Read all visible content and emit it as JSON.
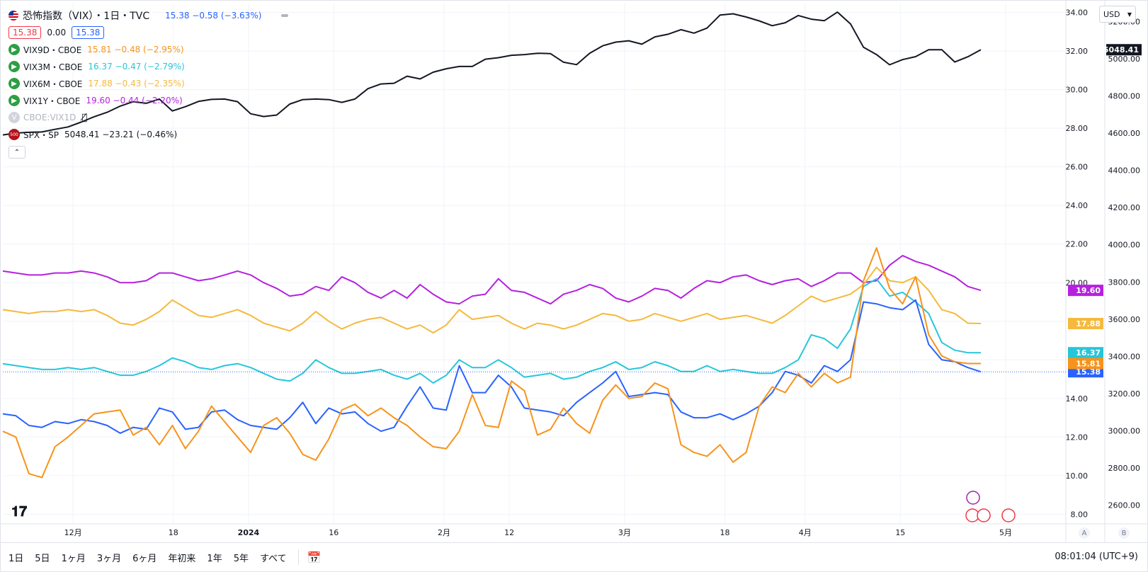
{
  "header": {
    "title": "恐怖指数（VIX）・1日・TVC",
    "main_values": "15.38 −0.58 (−3.63%)",
    "box_red": "15.38",
    "zero": "0.00",
    "box_blue": "15.38"
  },
  "series_legend": [
    {
      "name": "VIX9D・CBOE",
      "values": "15.81 −0.48 (−2.95%)",
      "color": "#f7931a"
    },
    {
      "name": "VIX3M・CBOE",
      "values": "16.37 −0.47 (−2.79%)",
      "color": "#26c6da"
    },
    {
      "name": "VIX6M・CBOE",
      "values": "17.88 −0.43 (−2.35%)",
      "color": "#f5b93d"
    },
    {
      "name": "VIX1Y・CBOE",
      "values": "19.60 −0.44 (−2.20%)",
      "color": "#b620e0"
    },
    {
      "name": "CBOE:VIX1D",
      "values": "",
      "color": "#b2b5be"
    },
    {
      "name": "SPX・SP",
      "values": "5048.41 −23.21 (−0.46%)",
      "color": "#131722"
    }
  ],
  "currency": "USD",
  "toolbar": {
    "ranges": [
      "1日",
      "5日",
      "1ヶ月",
      "3ヶ月",
      "6ヶ月",
      "年初来",
      "1年",
      "5年",
      "すべて"
    ],
    "clock": "08:01:04 (UTC+9)"
  },
  "scale_buttons": [
    "A",
    "B"
  ],
  "chart_data": {
    "type": "line",
    "x_labels": [
      "12月",
      "18",
      "2024",
      "16",
      "2月",
      "12",
      "3月",
      "18",
      "4月",
      "15",
      "5月"
    ],
    "left_axis": {
      "ticks": [
        8,
        10,
        12,
        14,
        16,
        18,
        20,
        22,
        24,
        26,
        28,
        30,
        32,
        34
      ],
      "labels": [
        "8.00",
        "10.00",
        "12.00",
        "14.00",
        "",
        "",
        "20.00",
        "22.00",
        "24.00",
        "26.00",
        "28.00",
        "30.00",
        "32.00",
        "34.00"
      ],
      "range": [
        7.5,
        34.5
      ]
    },
    "right_axis": {
      "ticks": [
        2600,
        2800,
        3000,
        3200,
        3400,
        3600,
        3800,
        4000,
        4200,
        4400,
        4600,
        4800,
        5000,
        5200
      ],
      "labels": [
        "2600.00",
        "2800.00",
        "3000.00",
        "3200.00",
        "3400.00",
        "3600.00",
        "3800.00",
        "4000.00",
        "4200.00",
        "4400.00",
        "4600.00",
        "4800.00",
        "5000.00",
        "5200.00"
      ],
      "range": [
        2500,
        5300
      ]
    },
    "series": [
      {
        "name": "VIX1Y・CBOE",
        "color": "#b620e0",
        "axis": "left",
        "last_label": "19.60",
        "values": [
          20.6,
          20.5,
          20.4,
          20.4,
          20.5,
          20.5,
          20.6,
          20.5,
          20.3,
          20.0,
          20.0,
          20.1,
          20.5,
          20.5,
          20.3,
          20.1,
          20.2,
          20.4,
          20.6,
          20.4,
          20.0,
          19.7,
          19.3,
          19.4,
          19.8,
          19.6,
          20.3,
          20.0,
          19.5,
          19.2,
          19.6,
          19.2,
          19.9,
          19.4,
          19.0,
          18.9,
          19.3,
          19.4,
          20.2,
          19.6,
          19.5,
          19.2,
          18.9,
          19.4,
          19.6,
          19.9,
          19.7,
          19.2,
          19.0,
          19.3,
          19.7,
          19.6,
          19.2,
          19.7,
          20.1,
          20.0,
          20.3,
          20.4,
          20.1,
          19.9,
          20.1,
          20.2,
          19.8,
          20.1,
          20.5,
          20.5,
          20.0,
          20.1,
          20.9,
          21.4,
          21.1,
          20.9,
          20.6,
          20.3,
          19.8,
          19.6
        ],
        "desc": "VIX1Y"
      },
      {
        "name": "VIX6M・CBOE",
        "color": "#f5b93d",
        "axis": "left",
        "last_label": "17.88",
        "values": [
          18.6,
          18.5,
          18.4,
          18.5,
          18.5,
          18.6,
          18.5,
          18.6,
          18.3,
          17.9,
          17.8,
          18.1,
          18.5,
          19.1,
          18.7,
          18.3,
          18.2,
          18.4,
          18.6,
          18.3,
          17.9,
          17.7,
          17.5,
          17.9,
          18.5,
          18.0,
          17.6,
          17.9,
          18.1,
          18.2,
          17.9,
          17.6,
          17.8,
          17.4,
          17.8,
          18.6,
          18.1,
          18.2,
          18.3,
          17.9,
          17.6,
          17.9,
          17.8,
          17.6,
          17.8,
          18.1,
          18.4,
          18.3,
          18.0,
          18.1,
          18.4,
          18.2,
          18.0,
          18.2,
          18.4,
          18.1,
          18.2,
          18.3,
          18.1,
          17.9,
          18.3,
          18.8,
          19.3,
          19.0,
          19.2,
          19.4,
          19.9,
          20.8,
          20.1,
          20.0,
          20.3,
          19.6,
          18.6,
          18.4,
          17.9,
          17.88
        ],
        "desc": "VIX6M"
      },
      {
        "name": "VIX3M・CBOE",
        "color": "#26c6da",
        "axis": "left",
        "last_label": "16.37",
        "values": [
          15.8,
          15.7,
          15.6,
          15.5,
          15.5,
          15.6,
          15.5,
          15.6,
          15.4,
          15.2,
          15.2,
          15.4,
          15.7,
          16.1,
          15.9,
          15.6,
          15.5,
          15.7,
          15.8,
          15.6,
          15.3,
          15.0,
          14.9,
          15.3,
          16.0,
          15.6,
          15.3,
          15.3,
          15.4,
          15.5,
          15.2,
          15.0,
          15.3,
          14.8,
          15.2,
          16.0,
          15.6,
          15.6,
          16.0,
          15.6,
          15.1,
          15.2,
          15.3,
          15.0,
          15.1,
          15.4,
          15.6,
          15.9,
          15.5,
          15.6,
          15.9,
          15.7,
          15.4,
          15.4,
          15.7,
          15.4,
          15.5,
          15.4,
          15.3,
          15.3,
          15.6,
          16.0,
          17.3,
          17.1,
          16.6,
          17.6,
          19.8,
          20.2,
          19.3,
          19.5,
          19.0,
          18.4,
          16.9,
          16.5,
          16.37,
          16.37
        ],
        "desc": "VIX3M"
      },
      {
        "name": "VIX・TVC",
        "color": "#2962ff",
        "axis": "left",
        "last_label": "15.38",
        "values": [
          13.2,
          13.1,
          12.6,
          12.5,
          12.8,
          12.7,
          12.9,
          12.8,
          12.6,
          12.2,
          12.5,
          12.4,
          13.5,
          13.3,
          12.4,
          12.5,
          13.3,
          13.4,
          12.9,
          12.6,
          12.5,
          12.4,
          13.0,
          13.8,
          12.7,
          13.5,
          13.2,
          13.3,
          12.7,
          12.3,
          12.5,
          13.6,
          14.6,
          13.5,
          13.4,
          15.7,
          14.3,
          14.3,
          15.2,
          14.6,
          13.5,
          13.4,
          13.3,
          13.1,
          13.8,
          14.3,
          14.8,
          15.4,
          14.1,
          14.2,
          14.3,
          14.2,
          13.3,
          13.0,
          13.0,
          13.2,
          12.9,
          13.2,
          13.6,
          14.3,
          15.4,
          15.2,
          14.8,
          15.7,
          15.4,
          16.0,
          19.0,
          18.9,
          18.7,
          18.6,
          19.1,
          16.8,
          16.0,
          15.9,
          15.6,
          15.38
        ],
        "desc": "VIX"
      },
      {
        "name": "VIX9D・CBOE",
        "color": "#f7931a",
        "axis": "left",
        "last_label": "15.81",
        "values": [
          12.3,
          12.0,
          10.1,
          9.9,
          11.5,
          12.0,
          12.6,
          13.2,
          13.3,
          13.4,
          12.1,
          12.5,
          11.6,
          12.6,
          11.4,
          12.3,
          13.6,
          12.8,
          12.0,
          11.2,
          12.6,
          13.0,
          12.2,
          11.1,
          10.8,
          11.9,
          13.4,
          13.7,
          13.1,
          13.5,
          13.0,
          12.6,
          12.0,
          11.5,
          11.4,
          12.3,
          14.2,
          12.6,
          12.5,
          14.9,
          14.4,
          12.1,
          12.4,
          13.5,
          12.7,
          12.2,
          13.9,
          14.7,
          14.0,
          14.1,
          14.8,
          14.5,
          11.6,
          11.2,
          11.0,
          11.6,
          10.7,
          11.2,
          13.6,
          14.6,
          14.3,
          15.3,
          14.6,
          15.3,
          14.8,
          15.1,
          20.1,
          21.8,
          19.7,
          18.9,
          20.3,
          17.3,
          16.2,
          15.9,
          15.81,
          15.81
        ],
        "desc": "VIX9D"
      },
      {
        "name": "SPX・SP",
        "color": "#131722",
        "axis": "right",
        "last_label": "5048.41",
        "values": [
          4590,
          4600,
          4604,
          4606,
          4620,
          4633,
          4659,
          4688,
          4712,
          4745,
          4769,
          4760,
          4783,
          4719,
          4742,
          4770,
          4781,
          4783,
          4769,
          4704,
          4689,
          4697,
          4756,
          4780,
          4783,
          4780,
          4765,
          4783,
          4839,
          4864,
          4868,
          4906,
          4891,
          4927,
          4946,
          4958,
          4958,
          4997,
          5005,
          5018,
          5022,
          5029,
          5027,
          4981,
          4968,
          5029,
          5069,
          5089,
          5096,
          5078,
          5117,
          5131,
          5156,
          5137,
          5164,
          5234,
          5241,
          5224,
          5203,
          5177,
          5193,
          5232,
          5212,
          5204,
          5250,
          5187,
          5061,
          5022,
          4967,
          4995,
          5011,
          5048,
          5048,
          4982,
          5010,
          5048
        ],
        "desc": "S&P 500"
      }
    ]
  }
}
